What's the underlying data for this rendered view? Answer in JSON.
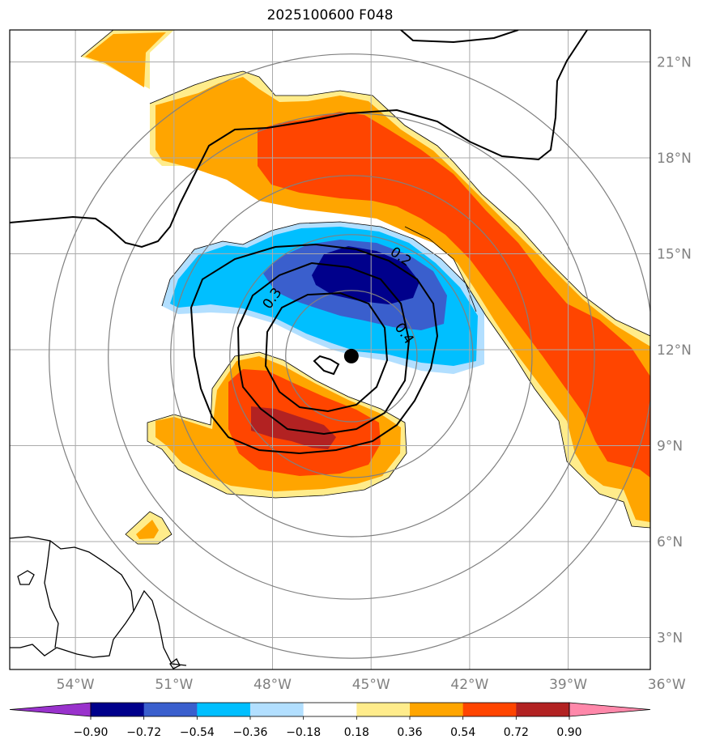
{
  "title": "2025100600 F048",
  "map": {
    "lon_range": [
      -56,
      -36.5
    ],
    "lat_range": [
      2,
      22
    ],
    "center": {
      "lon": -45.6,
      "lat": 11.8
    },
    "lon_ticks": [
      {
        "value": -54,
        "label": "54°W"
      },
      {
        "value": -51,
        "label": "51°W"
      },
      {
        "value": -48,
        "label": "48°W"
      },
      {
        "value": -45,
        "label": "45°W"
      },
      {
        "value": -42,
        "label": "42°W"
      },
      {
        "value": -39,
        "label": "39°W"
      },
      {
        "value": -36,
        "label": "36°W"
      }
    ],
    "lat_ticks": [
      {
        "value": 21,
        "label": "21°N"
      },
      {
        "value": 18,
        "label": "18°N"
      },
      {
        "value": 15,
        "label": "15°N"
      },
      {
        "value": 12,
        "label": "12°N"
      },
      {
        "value": 9,
        "label": "9°N"
      },
      {
        "value": 6,
        "label": "6°N"
      },
      {
        "value": 3,
        "label": "3°N"
      }
    ],
    "contour_labels": [
      {
        "text": "0.2",
        "lon": -44.1,
        "lat": 14.9,
        "rotate": 35
      },
      {
        "text": "0.3",
        "lon": -48.0,
        "lat": 13.6,
        "rotate": -55
      },
      {
        "text": "0.4",
        "lon": -44.0,
        "lat": 12.5,
        "rotate": 55
      }
    ]
  },
  "colorbar": {
    "labels": [
      "−0.90",
      "−0.72",
      "−0.54",
      "−0.36",
      "−0.18",
      "0.18",
      "0.36",
      "0.54",
      "0.72",
      "0.90"
    ],
    "colors": {
      "under": "#9932cc",
      "n090": "#00008b",
      "n072": "#3a5fcd",
      "n054": "#00bfff",
      "n036": "#b2dfff",
      "zero": "#ffffff",
      "p018": "#ffec8b",
      "p036": "#ffa500",
      "p054": "#ff4500",
      "p072": "#b22222",
      "over": "#ff88aa"
    }
  }
}
